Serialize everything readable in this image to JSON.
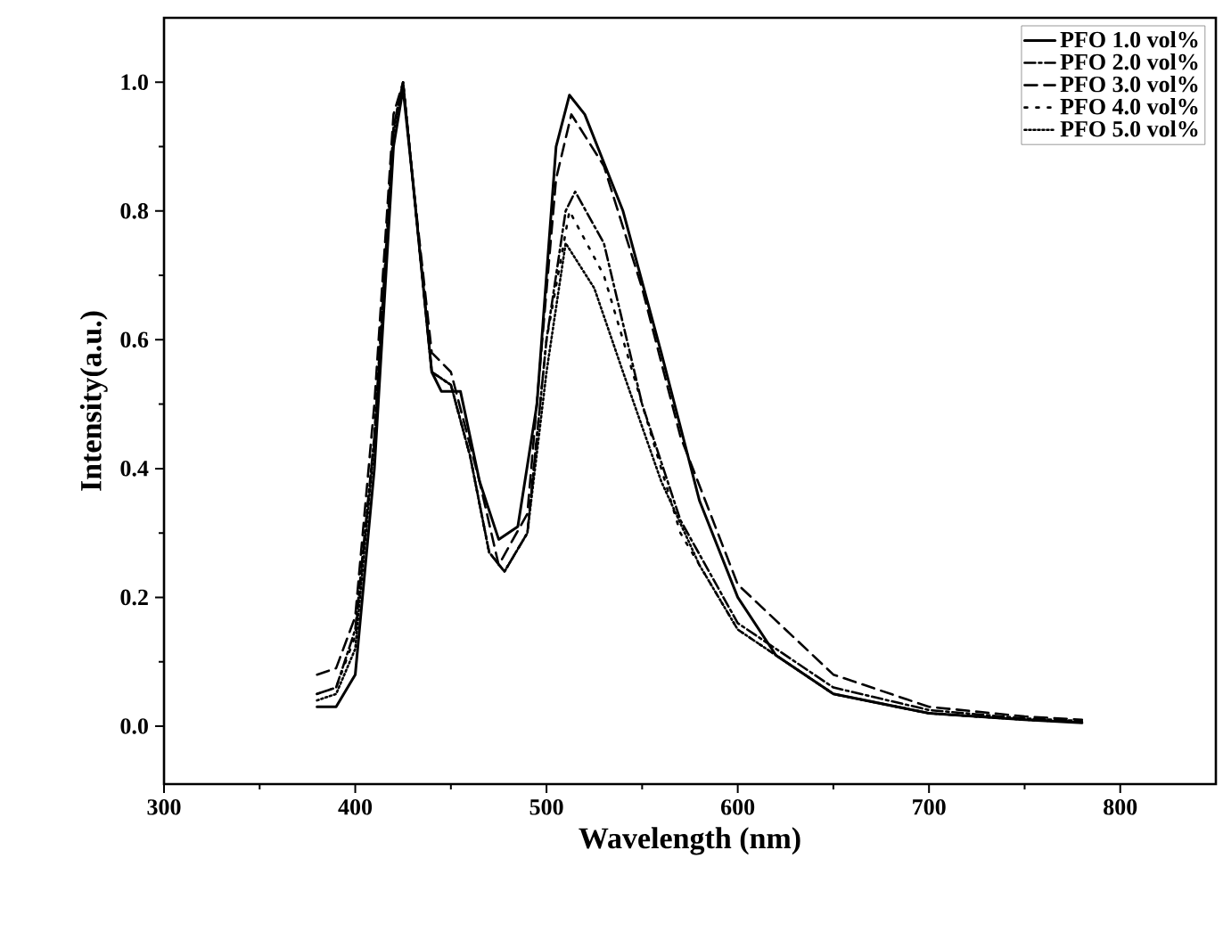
{
  "chart_data": {
    "type": "line",
    "xlabel": "Wavelength (nm)",
    "ylabel": "Intensity(a.u.)",
    "xlim": [
      300,
      850
    ],
    "ylim": [
      -0.09,
      1.1
    ],
    "xticks": [
      300,
      400,
      500,
      600,
      700,
      800
    ],
    "yticks": [
      {
        "value": 0,
        "label": "0.0"
      },
      {
        "value": 0.2,
        "label": "0.2"
      },
      {
        "value": 0.4,
        "label": "0.4"
      },
      {
        "value": 0.6,
        "label": "0.6"
      },
      {
        "value": 0.8,
        "label": "0.8"
      },
      {
        "value": 1,
        "label": "1.0"
      }
    ],
    "legend": "top right",
    "marker": "none",
    "series": [
      {
        "name": "PFO 1.0 vol%",
        "color": "#000000",
        "line_style": "solid",
        "x": [
          380,
          390,
          400,
          410,
          420,
          425,
          430,
          440,
          445,
          455,
          465,
          475,
          485,
          495,
          505,
          512,
          520,
          540,
          560,
          580,
          600,
          620,
          650,
          700,
          750,
          780
        ],
        "values": [
          0.03,
          0.03,
          0.08,
          0.4,
          0.9,
          0.99,
          0.85,
          0.55,
          0.52,
          0.52,
          0.38,
          0.29,
          0.31,
          0.5,
          0.9,
          0.98,
          0.95,
          0.8,
          0.58,
          0.35,
          0.2,
          0.11,
          0.05,
          0.02,
          0.01,
          0.005
        ]
      },
      {
        "name": "PFO 2.0 vol%",
        "color": "#000000",
        "line_style": "dashdot",
        "x": [
          380,
          390,
          400,
          410,
          420,
          425,
          430,
          440,
          450,
          460,
          470,
          478,
          490,
          500,
          510,
          515,
          530,
          550,
          570,
          600,
          650,
          700,
          750,
          780
        ],
        "values": [
          0.05,
          0.06,
          0.15,
          0.45,
          0.93,
          1.0,
          0.85,
          0.55,
          0.53,
          0.42,
          0.27,
          0.24,
          0.3,
          0.6,
          0.8,
          0.83,
          0.75,
          0.5,
          0.32,
          0.16,
          0.06,
          0.025,
          0.012,
          0.008
        ]
      },
      {
        "name": "PFO 3.0 vol%",
        "color": "#000000",
        "line_style": "dashed",
        "x": [
          380,
          390,
          400,
          410,
          420,
          425,
          430,
          440,
          450,
          465,
          475,
          490,
          505,
          513,
          530,
          550,
          570,
          600,
          650,
          700,
          750,
          780
        ],
        "values": [
          0.08,
          0.09,
          0.17,
          0.5,
          0.95,
          1.0,
          0.85,
          0.58,
          0.55,
          0.38,
          0.25,
          0.33,
          0.85,
          0.95,
          0.87,
          0.68,
          0.45,
          0.22,
          0.08,
          0.03,
          0.015,
          0.01
        ]
      },
      {
        "name": "PFO 4.0 vol%",
        "color": "#000000",
        "line_style": "loosely dotted",
        "x": [
          380,
          390,
          400,
          410,
          420,
          425,
          430,
          440,
          450,
          460,
          470,
          478,
          490,
          500,
          512,
          530,
          550,
          570,
          600,
          650,
          700,
          750,
          780
        ],
        "values": [
          0.05,
          0.06,
          0.14,
          0.45,
          0.93,
          1.0,
          0.85,
          0.55,
          0.53,
          0.42,
          0.27,
          0.24,
          0.3,
          0.6,
          0.8,
          0.7,
          0.5,
          0.3,
          0.15,
          0.05,
          0.02,
          0.01,
          0.007
        ]
      },
      {
        "name": "PFO 5.0 vol%",
        "color": "#000000",
        "line_style": "dotted",
        "x": [
          380,
          390,
          400,
          410,
          420,
          425,
          430,
          440,
          450,
          460,
          470,
          478,
          490,
          500,
          510,
          525,
          540,
          560,
          580,
          600,
          650,
          700,
          750,
          780
        ],
        "values": [
          0.04,
          0.05,
          0.12,
          0.44,
          0.92,
          1.0,
          0.85,
          0.55,
          0.53,
          0.42,
          0.27,
          0.24,
          0.3,
          0.55,
          0.75,
          0.68,
          0.55,
          0.38,
          0.25,
          0.15,
          0.05,
          0.02,
          0.01,
          0.006
        ]
      }
    ]
  }
}
